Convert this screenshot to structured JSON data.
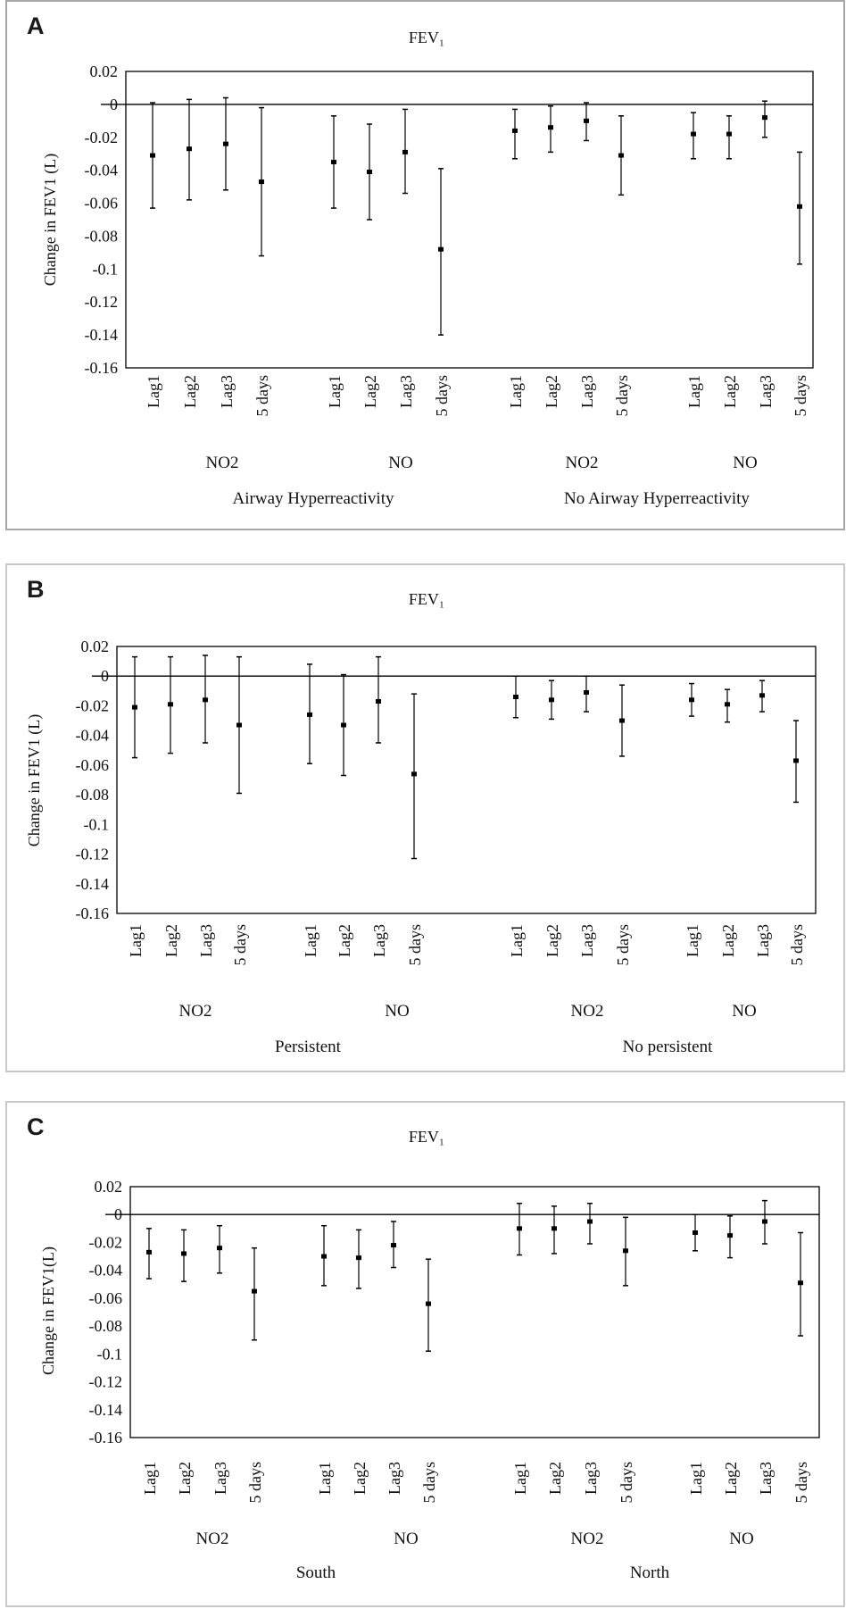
{
  "chart_data": [
    {
      "panel_label": "A",
      "type": "errorbar",
      "title": "FEV₁",
      "ylabel": "Change in FEV1 (L)",
      "ylim": [
        -0.16,
        0.02
      ],
      "yticks": [
        "0.02",
        "0",
        "-0.02",
        "-0.04",
        "-0.06",
        "-0.08",
        "-0.1",
        "-0.12",
        "-0.14",
        "-0.16"
      ],
      "categories": [
        "Lag1",
        "Lag2",
        "Lag3",
        "5 days",
        "Lag1",
        "Lag2",
        "Lag3",
        "5 days",
        "Lag1",
        "Lag2",
        "Lag3",
        "5 days",
        "Lag1",
        "Lag2",
        "Lag3",
        "5 days"
      ],
      "pollutant_labels": [
        "NO2",
        "NO",
        "NO2",
        "NO"
      ],
      "group_labels": [
        "Airway Hyperreactivity",
        "No Airway Hyperreactivity"
      ],
      "estimate": [
        -0.031,
        -0.027,
        -0.024,
        -0.047,
        -0.035,
        -0.041,
        -0.029,
        -0.088,
        -0.016,
        -0.014,
        -0.01,
        -0.031,
        -0.018,
        -0.018,
        -0.008,
        -0.062
      ],
      "lower": [
        -0.063,
        -0.058,
        -0.052,
        -0.092,
        -0.063,
        -0.07,
        -0.054,
        -0.14,
        -0.033,
        -0.029,
        -0.022,
        -0.055,
        -0.033,
        -0.033,
        -0.02,
        -0.097
      ],
      "upper": [
        0.001,
        0.003,
        0.004,
        -0.002,
        -0.007,
        -0.012,
        -0.003,
        -0.039,
        -0.003,
        -0.001,
        0.001,
        -0.007,
        -0.005,
        -0.007,
        0.002,
        -0.029
      ]
    },
    {
      "panel_label": "B",
      "type": "errorbar",
      "title": "FEV₁",
      "ylabel": "Change in FEV1 (L)",
      "ylim": [
        -0.16,
        0.02
      ],
      "yticks": [
        "0.02",
        "0",
        "-0.02",
        "-0.04",
        "-0.06",
        "-0.08",
        "-0.1",
        "-0.12",
        "-0.14",
        "-0.16"
      ],
      "categories": [
        "Lag1",
        "Lag2",
        "Lag3",
        "5 days",
        "Lag1",
        "Lag2",
        "Lag3",
        "5 days",
        "Lag1",
        "Lag2",
        "Lag3",
        "5 days",
        "Lag1",
        "Lag2",
        "Lag3",
        "5 days"
      ],
      "pollutant_labels": [
        "NO2",
        "NO",
        "NO2",
        "NO"
      ],
      "group_labels": [
        "Persistent",
        "No persistent"
      ],
      "estimate": [
        -0.021,
        -0.019,
        -0.016,
        -0.033,
        -0.026,
        -0.033,
        -0.017,
        -0.066,
        -0.014,
        -0.016,
        -0.011,
        -0.03,
        -0.016,
        -0.019,
        -0.013,
        -0.057
      ],
      "lower": [
        -0.055,
        -0.052,
        -0.045,
        -0.079,
        -0.059,
        -0.067,
        -0.045,
        -0.123,
        -0.028,
        -0.029,
        -0.024,
        -0.054,
        -0.027,
        -0.031,
        -0.024,
        -0.085
      ],
      "upper": [
        0.013,
        0.013,
        0.014,
        0.013,
        0.008,
        0.001,
        0.013,
        -0.012,
        0.0,
        -0.003,
        0.0,
        -0.006,
        -0.005,
        -0.009,
        -0.003,
        -0.03
      ]
    },
    {
      "panel_label": "C",
      "type": "errorbar",
      "title": "FEV₁",
      "ylabel": "Change in FEV1(L)",
      "ylim": [
        -0.16,
        0.02
      ],
      "yticks": [
        "0.02",
        "0",
        "-0.02",
        "-0.04",
        "-0.06",
        "-0.08",
        "-0.1",
        "-0.12",
        "-0.14",
        "-0.16"
      ],
      "categories": [
        "Lag1",
        "Lag2",
        "Lag3",
        "5 days",
        "Lag1",
        "Lag2",
        "Lag3",
        "5 days",
        "Lag1",
        "Lag2",
        "Lag3",
        "5 days",
        "Lag1",
        "Lag2",
        "Lag3",
        "5 days"
      ],
      "pollutant_labels": [
        "NO2",
        "NO",
        "NO2",
        "NO"
      ],
      "group_labels": [
        "South",
        "North"
      ],
      "estimate": [
        -0.027,
        -0.028,
        -0.024,
        -0.055,
        -0.03,
        -0.031,
        -0.022,
        -0.064,
        -0.01,
        -0.01,
        -0.005,
        -0.026,
        -0.013,
        -0.015,
        -0.005,
        -0.049
      ],
      "lower": [
        -0.046,
        -0.048,
        -0.042,
        -0.09,
        -0.051,
        -0.053,
        -0.038,
        -0.098,
        -0.029,
        -0.028,
        -0.021,
        -0.051,
        -0.026,
        -0.031,
        -0.021,
        -0.087
      ],
      "upper": [
        -0.01,
        -0.011,
        -0.008,
        -0.024,
        -0.008,
        -0.011,
        -0.005,
        -0.032,
        0.008,
        0.006,
        0.008,
        -0.002,
        0.0,
        -0.001,
        0.01,
        -0.013
      ]
    }
  ]
}
